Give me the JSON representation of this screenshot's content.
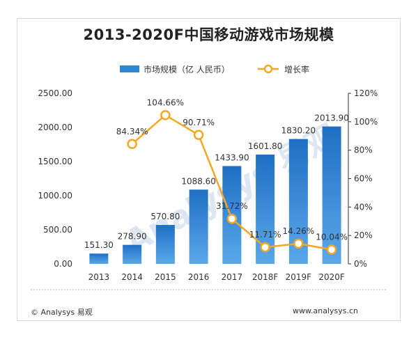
{
  "title": "2013-2020F中国移动游戏市场规模",
  "footer": {
    "left": "© Analysys 易观",
    "right": "www.analysys.cn"
  },
  "watermark": "Analysys 易观",
  "colors": {
    "bar": "#2f86d3",
    "line": "#f5a623",
    "marker_fill": "#ffffff"
  },
  "chart_data": {
    "type": "bar",
    "title": "2013-2020F中国移动游戏市场规模",
    "categories": [
      "2013",
      "2014",
      "2015",
      "2016",
      "2017",
      "2018F",
      "2019F",
      "2020F"
    ],
    "series": [
      {
        "name": "市场规模（亿 人民币）",
        "type": "bar",
        "axis": "left",
        "values": [
          151.3,
          278.9,
          570.8,
          1088.6,
          1433.9,
          1601.8,
          1830.2,
          2013.9
        ],
        "labels": [
          "151.30",
          "278.90",
          "570.80",
          "1088.60",
          "1433.90",
          "1601.80",
          "1830.20",
          "2013.90"
        ]
      },
      {
        "name": "增长率",
        "type": "line",
        "axis": "right",
        "values": [
          null,
          84.34,
          104.66,
          90.71,
          31.72,
          11.71,
          14.26,
          10.04
        ],
        "labels": [
          "",
          "84.34%",
          "104.66%",
          "90.71%",
          "31.72%",
          "11.71%",
          "14.26%",
          "10.04%"
        ]
      }
    ],
    "left_axis": {
      "ylim": [
        0,
        2500
      ],
      "ticks": [
        "0.00",
        "500.00",
        "1000.00",
        "1500.00",
        "2000.00",
        "2500.00"
      ]
    },
    "right_axis": {
      "ylim": [
        0,
        120
      ],
      "ticks": [
        "0%",
        "20%",
        "40%",
        "60%",
        "80%",
        "100%",
        "120%"
      ]
    },
    "grid": false,
    "legend_position": "top-center"
  }
}
